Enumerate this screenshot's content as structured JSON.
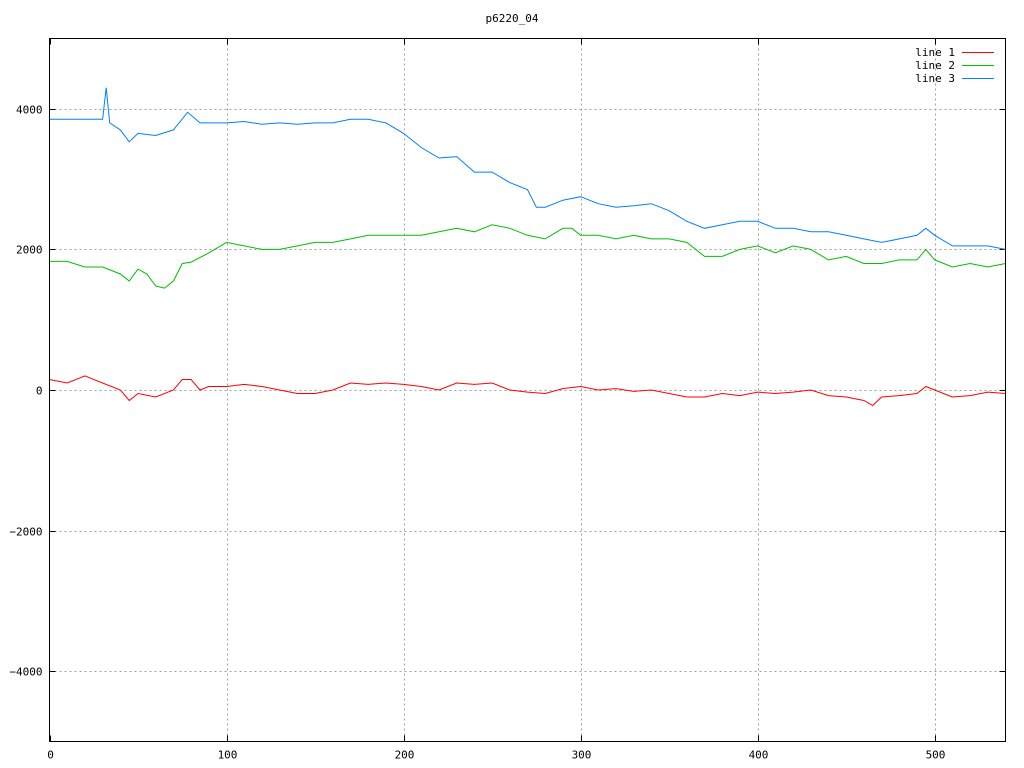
{
  "chart_data": {
    "type": "line",
    "title": "p6220_04",
    "xlabel": "",
    "ylabel": "",
    "xlim": [
      0,
      540
    ],
    "ylim": [
      -5000,
      5000
    ],
    "xticks": [
      0,
      100,
      200,
      300,
      400,
      500
    ],
    "yticks": [
      -4000,
      -2000,
      0,
      2000,
      4000
    ],
    "grid": true,
    "legend_position": "top-right",
    "series": [
      {
        "name": "line 1",
        "color": "#ff0000",
        "x": [
          0,
          10,
          20,
          30,
          40,
          45,
          50,
          60,
          70,
          75,
          80,
          85,
          90,
          100,
          110,
          120,
          130,
          140,
          150,
          160,
          170,
          180,
          190,
          200,
          210,
          220,
          230,
          240,
          250,
          260,
          270,
          280,
          290,
          300,
          310,
          320,
          330,
          340,
          350,
          360,
          370,
          380,
          390,
          400,
          410,
          420,
          430,
          440,
          450,
          460,
          465,
          470,
          480,
          490,
          495,
          500,
          510,
          520,
          530,
          540
        ],
        "y": [
          150,
          100,
          200,
          100,
          0,
          -150,
          -50,
          -100,
          0,
          150,
          150,
          0,
          50,
          50,
          80,
          50,
          0,
          -50,
          -50,
          0,
          100,
          80,
          100,
          80,
          50,
          0,
          100,
          80,
          100,
          0,
          -30,
          -50,
          20,
          50,
          0,
          20,
          -20,
          0,
          -50,
          -100,
          -100,
          -50,
          -80,
          -30,
          -50,
          -30,
          0,
          -80,
          -100,
          -150,
          -220,
          -100,
          -80,
          -50,
          50,
          0,
          -100,
          -80,
          -30,
          -50
        ]
      },
      {
        "name": "line 2",
        "color": "#00c000",
        "x": [
          0,
          10,
          20,
          30,
          40,
          45,
          50,
          55,
          60,
          65,
          70,
          75,
          80,
          90,
          100,
          110,
          120,
          130,
          140,
          150,
          160,
          170,
          180,
          190,
          200,
          210,
          220,
          230,
          240,
          250,
          260,
          270,
          280,
          290,
          295,
          300,
          310,
          320,
          330,
          340,
          350,
          360,
          370,
          380,
          390,
          400,
          410,
          420,
          430,
          440,
          450,
          460,
          470,
          480,
          490,
          495,
          500,
          510,
          520,
          530,
          540
        ],
        "y": [
          1830,
          1830,
          1750,
          1750,
          1650,
          1550,
          1720,
          1650,
          1480,
          1450,
          1550,
          1800,
          1820,
          1950,
          2100,
          2050,
          2000,
          2000,
          2050,
          2100,
          2100,
          2150,
          2200,
          2200,
          2200,
          2200,
          2250,
          2300,
          2250,
          2350,
          2300,
          2200,
          2150,
          2300,
          2300,
          2200,
          2200,
          2150,
          2200,
          2150,
          2150,
          2100,
          1900,
          1900,
          2000,
          2050,
          1950,
          2050,
          2000,
          1850,
          1900,
          1800,
          1800,
          1850,
          1850,
          2000,
          1850,
          1750,
          1800,
          1750,
          1800
        ]
      },
      {
        "name": "line 3",
        "color": "#0080ff",
        "x": [
          0,
          10,
          20,
          30,
          32,
          34,
          40,
          45,
          50,
          60,
          70,
          78,
          85,
          90,
          100,
          110,
          120,
          130,
          140,
          150,
          160,
          170,
          180,
          190,
          200,
          210,
          220,
          230,
          240,
          250,
          260,
          270,
          275,
          280,
          290,
          300,
          310,
          320,
          330,
          340,
          350,
          360,
          370,
          380,
          390,
          400,
          410,
          420,
          430,
          440,
          450,
          460,
          470,
          480,
          490,
          495,
          500,
          510,
          520,
          530,
          540
        ],
        "y": [
          3850,
          3850,
          3850,
          3850,
          4300,
          3800,
          3700,
          3530,
          3650,
          3620,
          3700,
          3950,
          3800,
          3800,
          3800,
          3820,
          3780,
          3800,
          3780,
          3800,
          3800,
          3850,
          3850,
          3800,
          3650,
          3450,
          3300,
          3320,
          3100,
          3100,
          2950,
          2850,
          2600,
          2600,
          2700,
          2750,
          2650,
          2600,
          2620,
          2650,
          2550,
          2400,
          2300,
          2350,
          2400,
          2400,
          2300,
          2300,
          2250,
          2250,
          2200,
          2150,
          2100,
          2150,
          2200,
          2300,
          2200,
          2050,
          2050,
          2050,
          2000
        ]
      }
    ]
  }
}
